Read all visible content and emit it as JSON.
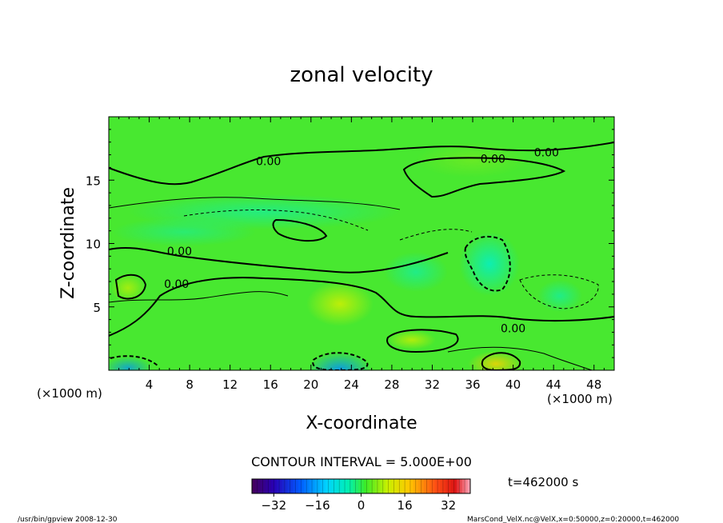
{
  "chart_data": {
    "type": "heatmap",
    "title": "zonal velocity",
    "xlabel": "X-coordinate",
    "ylabel": "Z-coordinate",
    "x_unit": "(×1000 m)",
    "z_unit": "(×1000 m)",
    "xlim": [
      0,
      50
    ],
    "ylim": [
      0,
      20
    ],
    "x_ticks": [
      "4",
      "8",
      "12",
      "16",
      "20",
      "24",
      "28",
      "32",
      "36",
      "40",
      "44",
      "48"
    ],
    "y_ticks": [
      "5",
      "10",
      "15"
    ],
    "contour_interval_label": "CONTOUR INTERVAL = 5.000E+00",
    "contour_labels": [
      {
        "text": "0.00",
        "x": 15.8,
        "y": 16.5
      },
      {
        "text": "0.00",
        "x": 38.0,
        "y": 16.7
      },
      {
        "text": "0.00",
        "x": 43.3,
        "y": 17.2
      },
      {
        "text": "0.00",
        "x": 7.0,
        "y": 9.4
      },
      {
        "text": "0.00",
        "x": 6.7,
        "y": 6.8
      },
      {
        "text": "0.00",
        "x": 40.0,
        "y": 3.3
      }
    ],
    "colorbar": {
      "min": -40,
      "max": 40,
      "ticks": [
        "-32",
        "-16",
        "0",
        "16",
        "32"
      ]
    },
    "time_label": "t=462000 s",
    "footer_left": "/usr/bin/gpview   2008-12-30",
    "footer_right": "MarsCond_VelX.nc@VelX,x=0:50000,z=0:20000,t=462000"
  }
}
